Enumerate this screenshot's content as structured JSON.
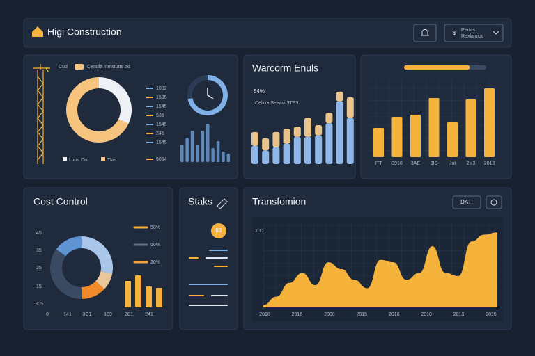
{
  "header": {
    "title": "Higi Construction",
    "menu": [
      "Pertas",
      "Rexlaloips"
    ]
  },
  "summary": {
    "legend": [
      "Cud",
      "Cendla Tonstutts bd"
    ],
    "donut": {
      "values": [
        32,
        68
      ],
      "colors": [
        "#eef1f5",
        "#f6c47e"
      ]
    },
    "list": [
      "1002",
      "1535",
      "1545",
      "535",
      "1545",
      "245",
      "1545",
      "5004"
    ],
    "footer_legend": [
      "Liars Dro",
      "Tlas"
    ],
    "gauge": {
      "values": [
        72,
        28
      ],
      "colors": [
        "#7fb0e6",
        "#2c3c55"
      ]
    },
    "bars": {
      "values": [
        25,
        35,
        45,
        25,
        45,
        55,
        20,
        30,
        15,
        12
      ],
      "ylim": [
        0,
        60
      ],
      "color": "#5d87b8"
    }
  },
  "trend": {
    "title": "Warcorm Enuls",
    "kpi": "54%",
    "subtitle": "Cello • Seaavi 3TE3",
    "ylim": [
      0,
      110
    ],
    "series": [
      {
        "color": "#8fb8e8",
        "values": [
          27,
          20,
          25,
          30,
          40,
          40,
          42,
          60,
          92,
          68
        ]
      },
      {
        "color": "#e8c48c",
        "values": [
          20,
          18,
          22,
          22,
          15,
          28,
          15,
          15,
          14,
          30
        ]
      }
    ]
  },
  "monthly": {
    "progress": {
      "value": 80,
      "max": 100,
      "color": "#f6b33c"
    },
    "categories": [
      "ITT",
      "3910",
      "3AE",
      "3IS",
      "Jul",
      "2Y3",
      "2013"
    ],
    "values": [
      42,
      58,
      61,
      85,
      50,
      83,
      99
    ],
    "ylim": [
      0,
      110
    ],
    "color": "#f6b33c"
  },
  "cost": {
    "title": "Cost Control",
    "y_labels": [
      "45",
      "35",
      "25",
      "15",
      "< 5"
    ],
    "x_labels": [
      "0",
      "141",
      "3C1",
      "189",
      "2C1",
      "241"
    ],
    "donut": {
      "values": [
        28,
        9,
        13,
        35,
        15
      ],
      "colors": [
        "#a9c6ea",
        "#e9c79a",
        "#f08a2b",
        "#3a4a62",
        "#5f93d4"
      ]
    },
    "legend": [
      {
        "label": "50%",
        "color": "#f6b33c"
      },
      {
        "label": "50%",
        "color": "#60718a"
      },
      {
        "label": "20%",
        "color": "#f6a23c"
      }
    ],
    "bars": {
      "values": [
        38,
        46,
        30,
        28
      ],
      "ylim": [
        0,
        50
      ],
      "color": "#f6b33c"
    }
  },
  "tasks": {
    "title": "Staks",
    "badge": "03"
  },
  "transform": {
    "title": "Transfomion",
    "button": "DAT!",
    "x_labels": [
      "2010",
      "2016",
      "2008",
      "2015",
      "2016",
      "2018",
      "2013",
      "2015"
    ],
    "yticks": [
      100
    ],
    "ylim": [
      0,
      100
    ],
    "color": "#f6b33c",
    "values": [
      3,
      14,
      32,
      45,
      29,
      59,
      50,
      36,
      25,
      62,
      59,
      36,
      45,
      80,
      45,
      41,
      86,
      95,
      98
    ]
  }
}
